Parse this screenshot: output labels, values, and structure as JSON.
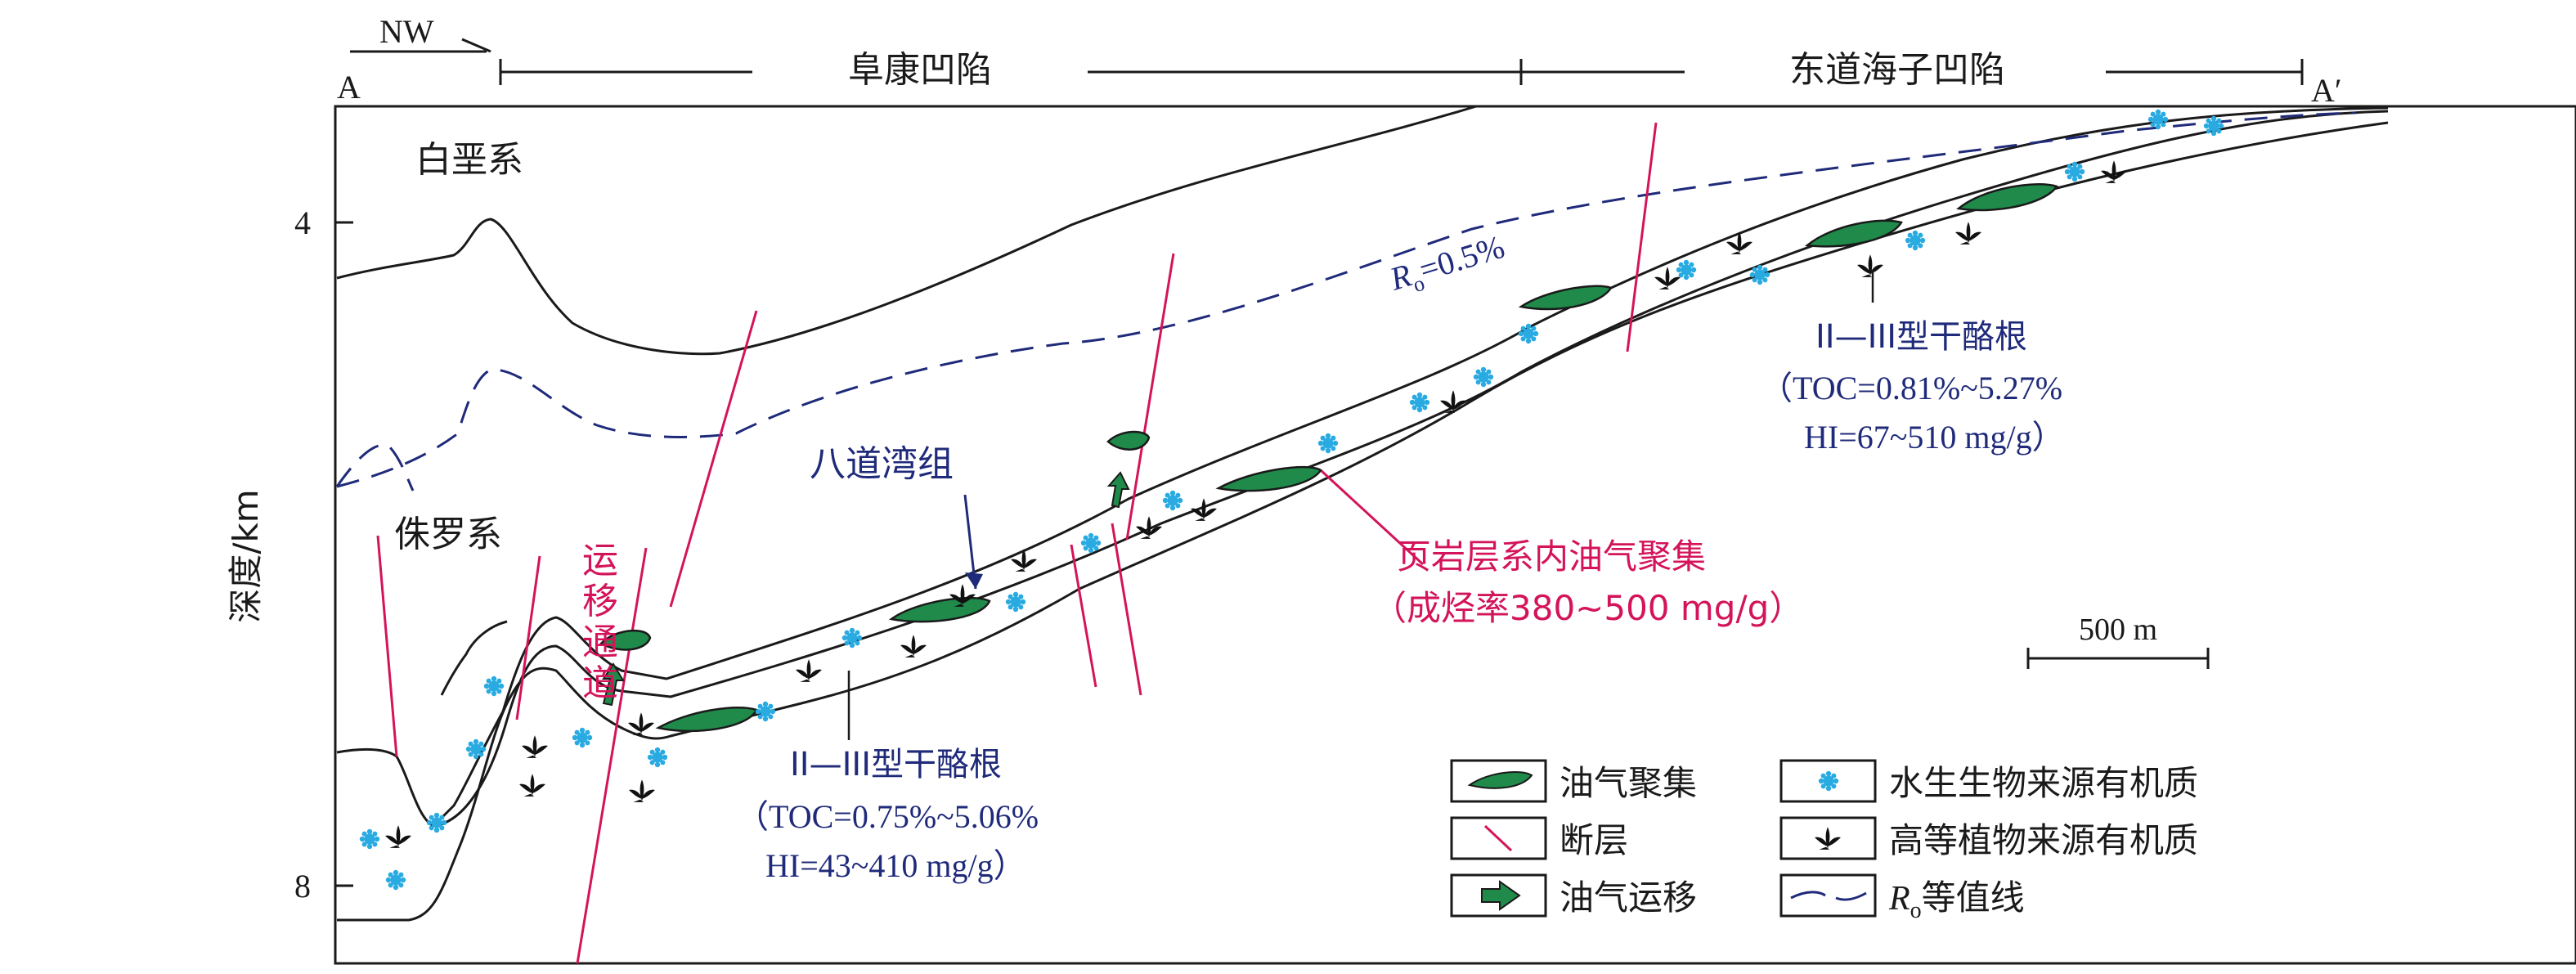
{
  "header": {
    "direction": "NW",
    "end_left": "A",
    "end_right": "A′",
    "region_left": "阜康凹陷",
    "region_right": "东道海子凹陷"
  },
  "axis": {
    "ylabel": "深度/km",
    "ticks": [
      "4",
      "8"
    ]
  },
  "labels": {
    "cretaceous": "白垩系",
    "jurassic": "侏罗系",
    "formation": "八道湾组",
    "migration": [
      "运",
      "移",
      "通",
      "道"
    ],
    "ro_contour": "0.5%",
    "ro_R": "R",
    "ro_sub": "o",
    "ro_eq": "="
  },
  "kerogen_right": {
    "title": "II—III型干酪根",
    "toc": "（TOC=0.81%~5.27%",
    "hi": "HI=67~510 mg/g）"
  },
  "kerogen_left": {
    "title": "II—III型干酪根",
    "toc": "（TOC=0.75%~5.06%",
    "hi": "HI=43~410 mg/g）"
  },
  "accumulation_note": {
    "title": "页岩层系内油气聚集",
    "rate": "（成烃率380~500 mg/g）"
  },
  "scale": {
    "label": "500 m"
  },
  "legend": {
    "oil_gas": "油气聚集",
    "fault": "断层",
    "migration": "油气运移",
    "aquatic": "水生生物来源有机质",
    "plant": "高等植物来源有机质",
    "ro_R": "R",
    "ro_sub": "o",
    "ro_text": "等值线"
  },
  "colors": {
    "line": "#1a1a1a",
    "fault": "#d4145a",
    "dashed": "#1f2a7a",
    "oil": "#1f8a4a",
    "aquatic": "#29abe2",
    "label_blue": "#1f2a7a",
    "label_red": "#d4145a"
  }
}
